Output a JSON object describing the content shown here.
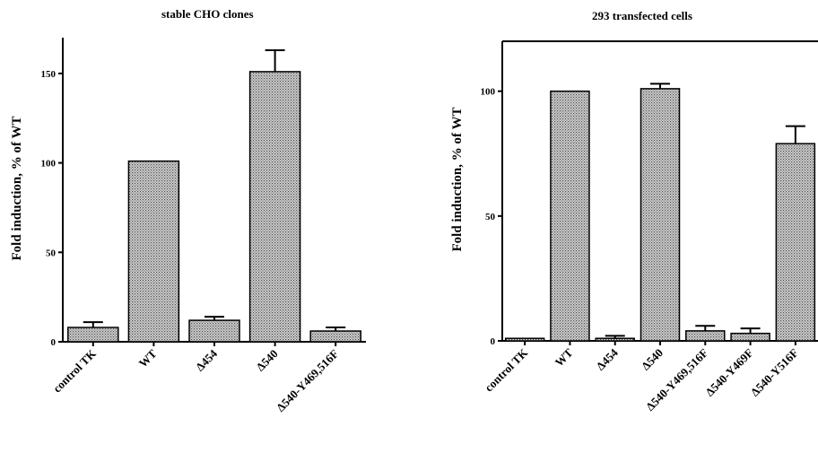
{
  "chart_data": [
    {
      "type": "bar",
      "title": "stable CHO clones",
      "ylabel": "Fold induction, % of WT",
      "categories": [
        "control TK",
        "WT",
        "Δ454",
        "Δ540",
        "Δ540-Y469,516F"
      ],
      "values": [
        8,
        101,
        12,
        151,
        6
      ],
      "errors": [
        3,
        0,
        2,
        12,
        2
      ],
      "ylim": [
        0,
        170
      ],
      "yticks": [
        0,
        50,
        100,
        150
      ],
      "grid": false
    },
    {
      "type": "bar",
      "title": "293 transfected cells",
      "ylabel": "Fold induction, % of WT",
      "categories": [
        "control TK",
        "WT",
        "Δ454",
        "Δ540",
        "Δ540-Y469,516F",
        "Δ540-Y469F",
        "Δ540-Y516F"
      ],
      "values": [
        1,
        100,
        1,
        101,
        4,
        3,
        79
      ],
      "errors": [
        0,
        0,
        1,
        2,
        2,
        2,
        7
      ],
      "ylim": [
        0,
        120
      ],
      "yticks": [
        0,
        50,
        100
      ],
      "grid": false
    }
  ]
}
